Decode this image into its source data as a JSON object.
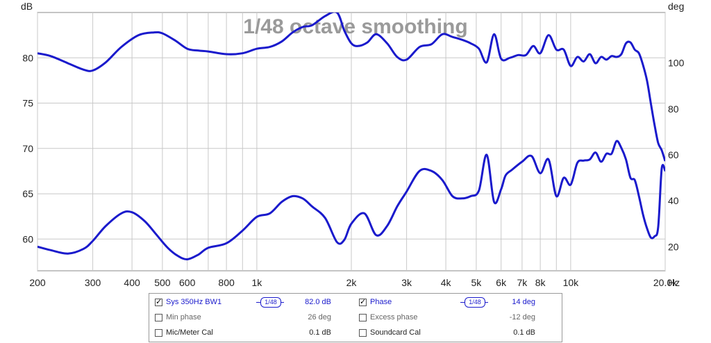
{
  "chart_data": {
    "type": "line",
    "title": "1/48 octave smoothing",
    "left_axis_unit": "dB",
    "right_axis_unit": "deg",
    "x_unit": "Hz",
    "x_scale": "log",
    "xlim": [
      200,
      20000
    ],
    "ylim_left": [
      56.5,
      85
    ],
    "ylim_right": [
      9.5,
      122
    ],
    "grid": true,
    "y_ticks_left": [
      60,
      65,
      70,
      75,
      80
    ],
    "y_ticks_right": [
      20,
      40,
      60,
      80,
      100
    ],
    "x_ticks": [
      {
        "v": 200,
        "label": "200"
      },
      {
        "v": 300,
        "label": "300"
      },
      {
        "v": 400,
        "label": "400"
      },
      {
        "v": 500,
        "label": "500"
      },
      {
        "v": 600,
        "label": "600"
      },
      {
        "v": 800,
        "label": "800"
      },
      {
        "v": 1000,
        "label": "1k"
      },
      {
        "v": 2000,
        "label": "2k"
      },
      {
        "v": 3000,
        "label": "3k"
      },
      {
        "v": 4000,
        "label": "4k"
      },
      {
        "v": 5000,
        "label": "5k"
      },
      {
        "v": 6000,
        "label": "6k"
      },
      {
        "v": 7000,
        "label": "7k"
      },
      {
        "v": 8000,
        "label": "8k"
      },
      {
        "v": 10000,
        "label": "10k"
      },
      {
        "v": 20000,
        "label": "20.0k"
      }
    ],
    "series": [
      {
        "name": "Sys 350Hz BW1",
        "axis": "left",
        "color": "#1a1acc",
        "x": [
          200,
          220,
          250,
          280,
          300,
          330,
          370,
          420,
          470,
          500,
          550,
          600,
          650,
          700,
          800,
          900,
          1000,
          1100,
          1200,
          1300,
          1400,
          1500,
          1650,
          1800,
          1900,
          2000,
          2100,
          2250,
          2400,
          2600,
          2800,
          3000,
          3300,
          3600,
          3900,
          4200,
          4500,
          4800,
          5100,
          5400,
          5700,
          6000,
          6400,
          6800,
          7200,
          7600,
          8000,
          8500,
          9000,
          9500,
          10000,
          10500,
          11000,
          11500,
          12000,
          12500,
          13000,
          13500,
          14000,
          14500,
          15000,
          15500,
          16000,
          16500,
          17000,
          17500,
          18000,
          18500,
          19000,
          19500,
          20000
        ],
        "values": [
          80.5,
          80.2,
          79.4,
          78.7,
          78.6,
          79.5,
          81.2,
          82.5,
          82.8,
          82.7,
          81.9,
          81.0,
          80.8,
          80.7,
          80.4,
          80.5,
          81.0,
          81.2,
          81.8,
          82.8,
          83.4,
          83.6,
          84.6,
          85.0,
          83.0,
          81.6,
          81.3,
          81.7,
          82.6,
          81.6,
          80.1,
          79.8,
          81.2,
          81.5,
          82.6,
          82.3,
          82.0,
          81.6,
          81.0,
          79.5,
          82.6,
          79.9,
          80.0,
          80.3,
          80.3,
          81.3,
          80.5,
          82.5,
          80.9,
          80.9,
          79.1,
          80.1,
          79.6,
          80.4,
          79.4,
          80.1,
          79.8,
          80.2,
          80.1,
          80.4,
          81.6,
          81.7,
          80.9,
          80.5,
          79.2,
          77.5,
          75.0,
          72.6,
          70.6,
          69.8,
          68.6
        ]
      },
      {
        "name": "Phase",
        "axis": "right",
        "color": "#1a1acc",
        "x": [
          200,
          220,
          250,
          280,
          300,
          330,
          370,
          400,
          440,
          480,
          520,
          560,
          600,
          650,
          700,
          800,
          900,
          1000,
          1100,
          1200,
          1300,
          1400,
          1500,
          1650,
          1800,
          1900,
          2000,
          2200,
          2400,
          2600,
          2800,
          3000,
          3300,
          3600,
          3900,
          4200,
          4500,
          4800,
          5100,
          5400,
          5700,
          6000,
          6200,
          6500,
          7000,
          7500,
          8000,
          8500,
          9000,
          9500,
          10000,
          10500,
          11000,
          11500,
          12000,
          12500,
          13000,
          13500,
          14000,
          14500,
          15000,
          15500,
          16000,
          16500,
          17000,
          17500,
          18000,
          18500,
          19000,
          19500,
          20000
        ],
        "values": [
          20.0,
          18.5,
          17.0,
          19.0,
          22.5,
          29.0,
          34.5,
          35.0,
          31.0,
          25.0,
          19.5,
          16.0,
          14.5,
          16.5,
          19.5,
          21.5,
          27.0,
          33.0,
          34.5,
          39.5,
          42.0,
          41.0,
          37.5,
          32.5,
          22.0,
          23.0,
          30.0,
          34.5,
          25.0,
          29.0,
          37.5,
          44.0,
          53.0,
          53.0,
          49.0,
          42.0,
          41.0,
          42.0,
          44.5,
          60.0,
          39.5,
          45.0,
          51.0,
          53.5,
          57.0,
          59.5,
          52.0,
          58.0,
          42.0,
          50.0,
          47.0,
          56.5,
          57.5,
          58.0,
          61.0,
          57.0,
          60.5,
          60.5,
          66.0,
          63.0,
          58.0,
          50.0,
          49.0,
          42.0,
          34.0,
          28.0,
          24.0,
          24.5,
          28.5,
          54.0,
          53.0
        ]
      }
    ]
  },
  "legend": {
    "rows": [
      {
        "left": {
          "checked": true,
          "label": "Sys 350Hz BW1",
          "smoothing": "1/48",
          "value": "82.0 dB",
          "active": true
        },
        "right": {
          "checked": true,
          "label": "Phase",
          "smoothing": "1/48",
          "value": "14 deg",
          "active": true
        }
      },
      {
        "left": {
          "checked": false,
          "label": "Min phase",
          "smoothing": "",
          "value": "26 deg",
          "active": false
        },
        "right": {
          "checked": false,
          "label": "Excess phase",
          "smoothing": "",
          "value": "-12 deg",
          "active": false
        }
      },
      {
        "left": {
          "checked": false,
          "label": "Mic/Meter Cal",
          "smoothing": "",
          "value": "0.1 dB",
          "active": false,
          "black": true
        },
        "right": {
          "checked": false,
          "label": "Soundcard Cal",
          "smoothing": "",
          "value": "0.1 dB",
          "active": false,
          "black": true
        }
      }
    ]
  }
}
